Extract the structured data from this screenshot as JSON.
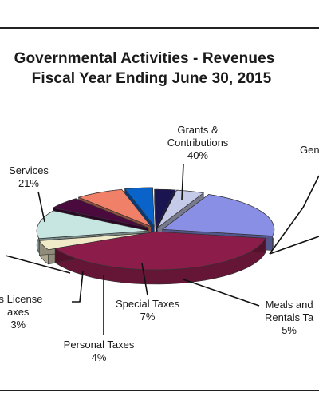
{
  "chart_data": {
    "type": "pie",
    "title_line1": "Governmental Activities - Revenues",
    "title_line2": "Fiscal Year Ending June 30, 2015",
    "slices": [
      {
        "label": "Grants & Contributions",
        "label_lines": [
          "Grants &",
          "Contributions"
        ],
        "pct_text": "40%",
        "value": 40,
        "color": "#8c1d4a"
      },
      {
        "label": "Gen",
        "label_lines": [
          "Gen"
        ],
        "pct_text": "",
        "value": 4,
        "color": "#f1eac9"
      },
      {
        "label": "",
        "label_lines": [],
        "pct_text": "",
        "value": 12,
        "color": "#c8e6e1"
      },
      {
        "label": "Meals and Rentals Ta",
        "label_lines": [
          "Meals and",
          "Rentals Ta"
        ],
        "pct_text": "5%",
        "value": 5,
        "color": "#4a0a3e"
      },
      {
        "label": "Special Taxes",
        "label_lines": [
          "Special Taxes"
        ],
        "pct_text": "7%",
        "value": 7,
        "color": "#f08068"
      },
      {
        "label": "Personal Taxes",
        "label_lines": [
          "Personal Taxes"
        ],
        "pct_text": "4%",
        "value": 4,
        "color": "#0a63c9"
      },
      {
        "label": "ss License axes",
        "label_lines": [
          "ss License",
          "axes"
        ],
        "pct_text": "3%",
        "value": 3,
        "color": "#1a1550"
      },
      {
        "label": "",
        "label_lines": [],
        "pct_text": "",
        "value": 4,
        "color": "#c6cae9"
      },
      {
        "label": "Services",
        "label_lines": [
          "Services"
        ],
        "pct_text": "21%",
        "value": 21,
        "color": "#8a8fe6"
      }
    ]
  }
}
